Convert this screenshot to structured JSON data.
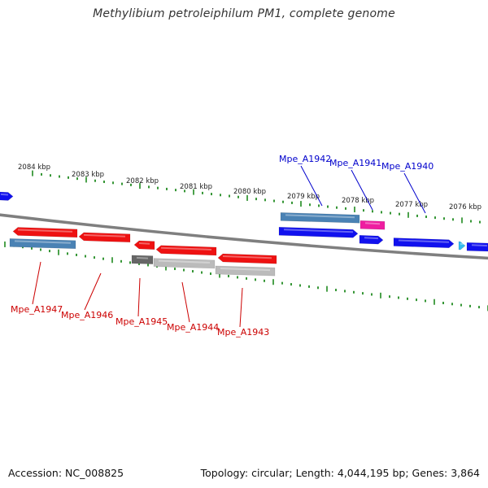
{
  "title": "Methylibium petroleiphilum PM1, complete genome",
  "colors": {
    "tick": "#1f8a1f",
    "backbone": "#7f7f7f",
    "red": "#ee1111",
    "steel": "#4a82b4",
    "blue": "#1111ee",
    "magenta": "#ee1ea0",
    "cyan": "#33bbee",
    "grey_dark": "#666666",
    "grey_light": "#bbbbbb",
    "label_red": "#cc0000",
    "label_blue": "#0000cc"
  },
  "scale_labels": [
    "2084 kbp",
    "2083 kbp",
    "2082 kbp",
    "2081 kbp",
    "2080 kbp",
    "2079 kbp",
    "2078 kbp",
    "2077 kbp",
    "2076 kbp"
  ],
  "genes": [
    {
      "id": "mpe_a1947",
      "label": "Mpe_A1947",
      "color": "red"
    },
    {
      "id": "mpe_a1946",
      "label": "Mpe_A1946",
      "color": "red"
    },
    {
      "id": "mpe_a1945",
      "label": "Mpe_A1945",
      "color": "red"
    },
    {
      "id": "mpe_a1944",
      "label": "Mpe_A1944",
      "color": "red"
    },
    {
      "id": "mpe_a1943",
      "label": "Mpe_A1943",
      "color": "red"
    },
    {
      "id": "mpe_a1942",
      "label": "Mpe_A1942",
      "color": "blue"
    },
    {
      "id": "mpe_a1941",
      "label": "Mpe_A1941",
      "color": "blue"
    },
    {
      "id": "mpe_a1940",
      "label": "Mpe_A1940",
      "color": "blue"
    }
  ],
  "footer": {
    "accession": "Accession: NC_008825",
    "summary": "Topology: circular; Length: 4,044,195 bp; Genes: 3,864"
  }
}
